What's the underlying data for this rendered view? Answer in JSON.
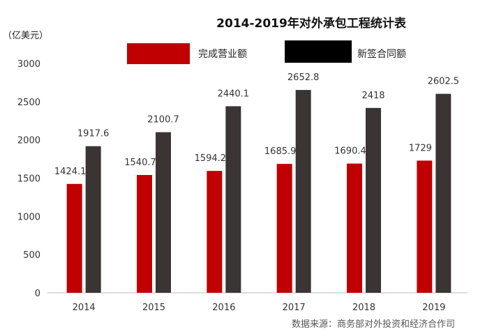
{
  "chart_data": {
    "type": "bar",
    "title": "2014-2019年对外承包工程统计表",
    "unit": "（亿美元）",
    "categories": [
      "2014",
      "2015",
      "2016",
      "2017",
      "2018",
      "2019"
    ],
    "series": [
      {
        "name": "完成营业额",
        "color": "#c00000",
        "values": [
          1424.1,
          1540.7,
          1594.2,
          1685.9,
          1690.4,
          1729
        ]
      },
      {
        "name": "新签合同额",
        "color": "#3a3434",
        "values": [
          1917.6,
          2100.7,
          2440.1,
          2652.8,
          2418,
          2602.5
        ]
      }
    ],
    "ylim": [
      0,
      3000
    ],
    "yticks": [
      0,
      500,
      1000,
      1500,
      2000,
      2500,
      3000
    ],
    "grid": false,
    "legend_position": "top",
    "source": "数据来源：商务部对外投资和经济合作司"
  }
}
